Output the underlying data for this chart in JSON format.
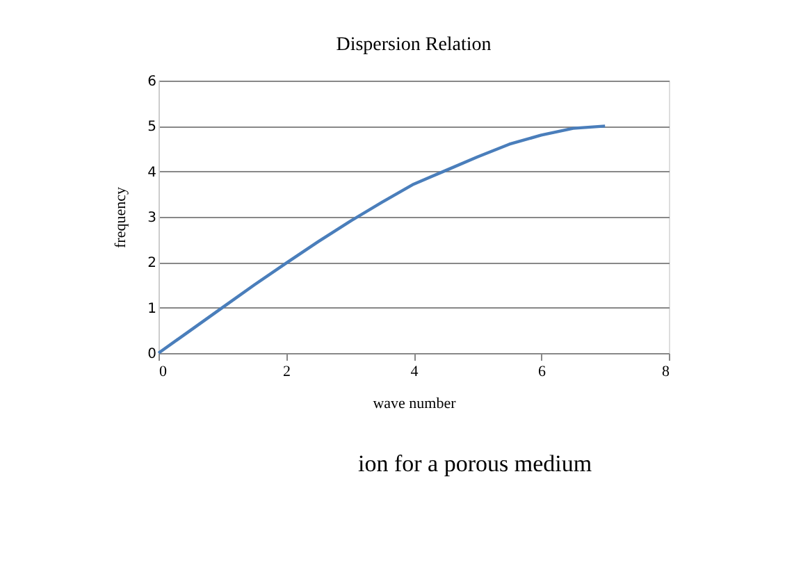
{
  "chart_data": {
    "type": "line",
    "title": "Dispersion Relation",
    "xlabel": "wave number",
    "ylabel": "frequency",
    "x": [
      0,
      0.5,
      1,
      1.5,
      2,
      2.5,
      3,
      3.5,
      4,
      4.5,
      5,
      5.5,
      6,
      6.5,
      7
    ],
    "series": [
      {
        "color": "#4a7ebb",
        "values": [
          0,
          0.5,
          1.0,
          1.5,
          1.98,
          2.45,
          2.9,
          3.32,
          3.72,
          4.02,
          4.32,
          4.6,
          4.8,
          4.95,
          5.0
        ]
      }
    ],
    "xlim": [
      0,
      8
    ],
    "xticks": [
      0,
      2,
      4,
      6,
      8
    ],
    "ylim": [
      0,
      6
    ],
    "yticks": [
      0,
      1,
      2,
      3,
      4,
      5,
      6
    ],
    "grid": "y",
    "marker": "none",
    "line_style": "solid",
    "annotations": [
      "ion for a porous medium"
    ]
  }
}
